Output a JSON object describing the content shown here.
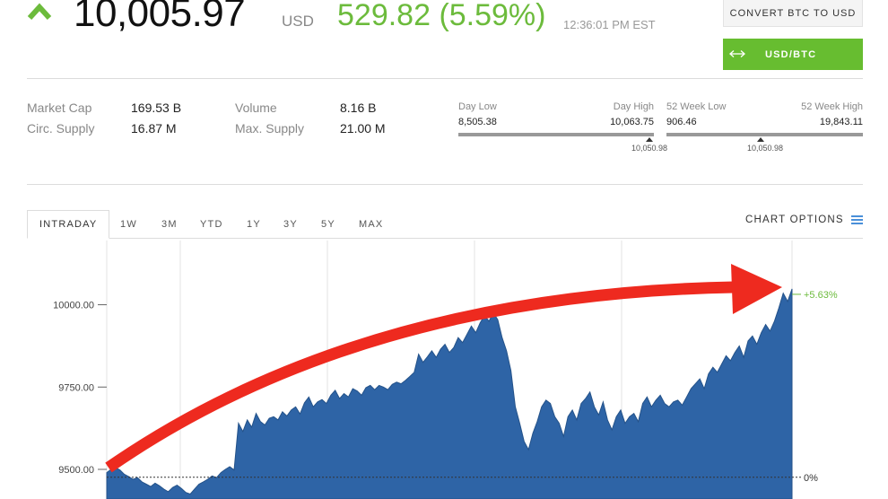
{
  "quote": {
    "price": "10,005.97",
    "currency": "USD",
    "change": "529.82 (5.59%)",
    "timestamp": "12:36:01 PM EST",
    "direction_icon": "up-arrow-icon",
    "colors": {
      "positive": "#6cbb3c",
      "accent_button": "#67bd30",
      "chart_fill": "#2e64a6",
      "annotation_arrow": "#ee2a1f"
    }
  },
  "actions": {
    "convert_label": "CONVERT BTC TO USD",
    "pair_label": "USD/BTC",
    "pair_icon": "swap-arrows-icon"
  },
  "stats": {
    "market_cap_label": "Market Cap",
    "market_cap_value": "169.53 B",
    "circ_supply_label": "Circ. Supply",
    "circ_supply_value": "16.87 M",
    "volume_label": "Volume",
    "volume_value": "8.16 B",
    "max_supply_label": "Max. Supply",
    "max_supply_value": "21.00 M"
  },
  "ranges": {
    "day_low_label": "Day Low",
    "day_low_value": "8,505.38",
    "day_high_label": "Day High",
    "day_high_value": "10,063.75",
    "day_marker": "10,050.98",
    "week52_low_label": "52 Week Low",
    "week52_low_value": "906.46",
    "week52_high_label": "52 Week High",
    "week52_high_value": "19,843.11",
    "week52_marker": "10,050.98"
  },
  "tabs": [
    "INTRADAY",
    "1W",
    "3M",
    "YTD",
    "1Y",
    "3Y",
    "5Y",
    "MAX"
  ],
  "active_tab": "INTRADAY",
  "chart_options_label": "CHART OPTIONS",
  "chart_data": {
    "type": "area",
    "y_ticks": [
      "10000.00",
      "9750.00",
      "9500.00"
    ],
    "y_tick_values": [
      10000,
      9750,
      9500
    ],
    "ylim": [
      9410,
      10195
    ],
    "series": [
      {
        "values": [
          9490,
          9500,
          9505,
          9498,
          9485,
          9478,
          9470,
          9475,
          9462,
          9455,
          9448,
          9458,
          9450,
          9440,
          9432,
          9445,
          9452,
          9442,
          9430,
          9425,
          9440,
          9455,
          9462,
          9470,
          9480,
          9475,
          9490,
          9500,
          9508,
          9498,
          9640,
          9615,
          9650,
          9628,
          9670,
          9645,
          9635,
          9655,
          9660,
          9650,
          9675,
          9662,
          9680,
          9690,
          9668,
          9702,
          9720,
          9690,
          9705,
          9712,
          9700,
          9725,
          9740,
          9715,
          9730,
          9720,
          9745,
          9738,
          9725,
          9748,
          9755,
          9742,
          9755,
          9750,
          9742,
          9758,
          9765,
          9760,
          9770,
          9782,
          9795,
          9850,
          9825,
          9842,
          9860,
          9840,
          9865,
          9880,
          9855,
          9870,
          9900,
          9885,
          9910,
          9935,
          9915,
          9945,
          9968,
          9950,
          9975,
          9955,
          9900,
          9860,
          9800,
          9690,
          9640,
          9585,
          9560,
          9610,
          9645,
          9690,
          9710,
          9700,
          9660,
          9640,
          9600,
          9660,
          9680,
          9650,
          9700,
          9715,
          9735,
          9690,
          9665,
          9705,
          9650,
          9620,
          9660,
          9680,
          9640,
          9660,
          9670,
          9645,
          9700,
          9720,
          9690,
          9710,
          9725,
          9700,
          9690,
          9705,
          9710,
          9695,
          9720,
          9745,
          9760,
          9775,
          9745,
          9790,
          9810,
          9795,
          9820,
          9845,
          9830,
          9855,
          9875,
          9840,
          9890,
          9905,
          9880,
          9915,
          9940,
          9920,
          9950,
          9990,
          10035,
          10010,
          10048
        ]
      }
    ],
    "current_change_label": "+5.63%",
    "baseline_label": "0%",
    "annotation": "red curved arrow rising to the latest price"
  }
}
